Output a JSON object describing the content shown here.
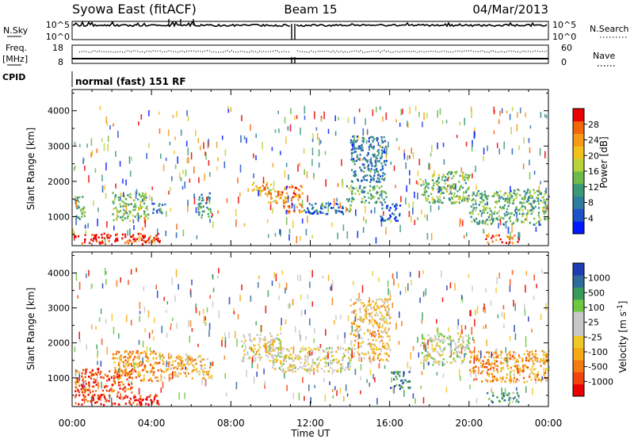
{
  "header": {
    "station": "Syowa East (fitACF)",
    "beam": "Beam 15",
    "date": "04/Mar/2013"
  },
  "top_panel": {
    "left_label": "N.Sky",
    "left_ticks": [
      "10^5",
      "10^0"
    ],
    "right_label": "N.Search",
    "right_ticks": [
      "10^5",
      "10^0"
    ]
  },
  "freq_panel": {
    "left_label_1": "Freq.",
    "left_label_2": "[MHz]",
    "left_ticks": [
      "18",
      "8"
    ],
    "right_label": "Nave",
    "right_ticks": [
      "60",
      "0"
    ],
    "cpid_label": "CPID",
    "program": "normal (fast) 151 RF"
  },
  "chart_data": [
    {
      "type": "heatmap",
      "variable": "power",
      "ylabel": "Slant Range [km]",
      "ylim": [
        180,
        4600
      ],
      "yticks": [
        "1000",
        "2000",
        "3000",
        "4000"
      ],
      "xlim_hours": [
        0,
        24
      ],
      "colorbar": {
        "label": "Power [dB]",
        "ticks": [
          "4",
          "8",
          "12",
          "16",
          "20",
          "24",
          "28"
        ],
        "colors": [
          "#0018ff",
          "#1e52c8",
          "#2e7ca0",
          "#3a9a78",
          "#6dbb4a",
          "#b8d23c",
          "#f2c11e",
          "#f59a16",
          "#f2660c",
          "#ea0000"
        ]
      },
      "echo_regions": [
        {
          "t0": 0.1,
          "t1": 4.4,
          "r0": 250,
          "r1": 550,
          "v": 0.95
        },
        {
          "t0": 0.1,
          "t1": 0.6,
          "r0": 900,
          "r1": 1600,
          "v": 0.4
        },
        {
          "t0": 2.0,
          "t1": 3.8,
          "r0": 900,
          "r1": 1700,
          "v": 0.45
        },
        {
          "t0": 4.0,
          "t1": 4.7,
          "r0": 1100,
          "r1": 1400,
          "v": 0.3
        },
        {
          "t0": 6.3,
          "t1": 7.0,
          "r0": 1000,
          "r1": 1700,
          "v": 0.35
        },
        {
          "t0": 9.0,
          "t1": 10.0,
          "r0": 1650,
          "r1": 2000,
          "v": 0.65
        },
        {
          "t0": 9.8,
          "t1": 10.6,
          "r0": 1400,
          "r1": 1850,
          "v": 0.75
        },
        {
          "t0": 10.6,
          "t1": 11.6,
          "r0": 1100,
          "r1": 1900,
          "v": 0.8
        },
        {
          "t0": 11.6,
          "t1": 14.0,
          "r0": 1100,
          "r1": 1400,
          "v": 0.2
        },
        {
          "t0": 13.8,
          "t1": 15.8,
          "r0": 1400,
          "r1": 1900,
          "v": 0.4
        },
        {
          "t0": 14.0,
          "t1": 15.8,
          "r0": 2000,
          "r1": 3300,
          "v": 0.25
        },
        {
          "t0": 15.5,
          "t1": 16.5,
          "r0": 900,
          "r1": 1400,
          "v": 0.15
        },
        {
          "t0": 17.5,
          "t1": 20.0,
          "r0": 1400,
          "r1": 2300,
          "v": 0.45
        },
        {
          "t0": 20.0,
          "t1": 24.0,
          "r0": 800,
          "r1": 1800,
          "v": 0.4
        },
        {
          "t0": 20.8,
          "t1": 22.5,
          "r0": 280,
          "r1": 500,
          "v": 0.85
        }
      ]
    },
    {
      "type": "heatmap",
      "variable": "velocity",
      "ylabel": "Slant Range [km]",
      "ylim": [
        180,
        4600
      ],
      "yticks": [
        "1000",
        "2000",
        "3000",
        "4000"
      ],
      "xlim_hours": [
        0,
        24
      ],
      "xticks": [
        "00:00",
        "04:00",
        "08:00",
        "12:00",
        "16:00",
        "20:00",
        "00:00"
      ],
      "xlabel": "Time UT",
      "colorbar": {
        "label": "Velocity [m s",
        "label_exp": "-1",
        "ticks": [
          "-1000",
          "-500",
          "-100",
          "-25",
          "25",
          "100",
          "500",
          "1000"
        ],
        "colors": [
          "#ea0000",
          "#f2440c",
          "#f27a10",
          "#f5a818",
          "#f0c828",
          "#c8c8c8",
          "#c8c8c8",
          "#6ec840",
          "#3a9a5a",
          "#2e6a9a",
          "#1e3cb4"
        ]
      },
      "echo_regions": [
        {
          "t0": 0.1,
          "t1": 4.4,
          "r0": 250,
          "r1": 550,
          "v": 0.05
        },
        {
          "t0": 0.1,
          "t1": 3.0,
          "r0": 600,
          "r1": 1300,
          "v": 0.15
        },
        {
          "t0": 2.0,
          "t1": 4.4,
          "r0": 900,
          "r1": 1800,
          "v": 0.3
        },
        {
          "t0": 4.4,
          "t1": 7.0,
          "r0": 1000,
          "r1": 1700,
          "v": 0.35
        },
        {
          "t0": 8.5,
          "t1": 10.5,
          "r0": 1500,
          "r1": 2300,
          "v": 0.5
        },
        {
          "t0": 10.0,
          "t1": 14.0,
          "r0": 1200,
          "r1": 1900,
          "v": 0.5
        },
        {
          "t0": 14.0,
          "t1": 16.0,
          "r0": 1500,
          "r1": 3300,
          "v": 0.4
        },
        {
          "t0": 16.0,
          "t1": 17.0,
          "r0": 700,
          "r1": 1200,
          "v": 0.8
        },
        {
          "t0": 17.5,
          "t1": 20.0,
          "r0": 1400,
          "r1": 2300,
          "v": 0.55
        },
        {
          "t0": 20.0,
          "t1": 24.0,
          "r0": 900,
          "r1": 1800,
          "v": 0.3
        },
        {
          "t0": 20.8,
          "t1": 22.5,
          "r0": 300,
          "r1": 600,
          "v": 0.75
        }
      ]
    }
  ]
}
